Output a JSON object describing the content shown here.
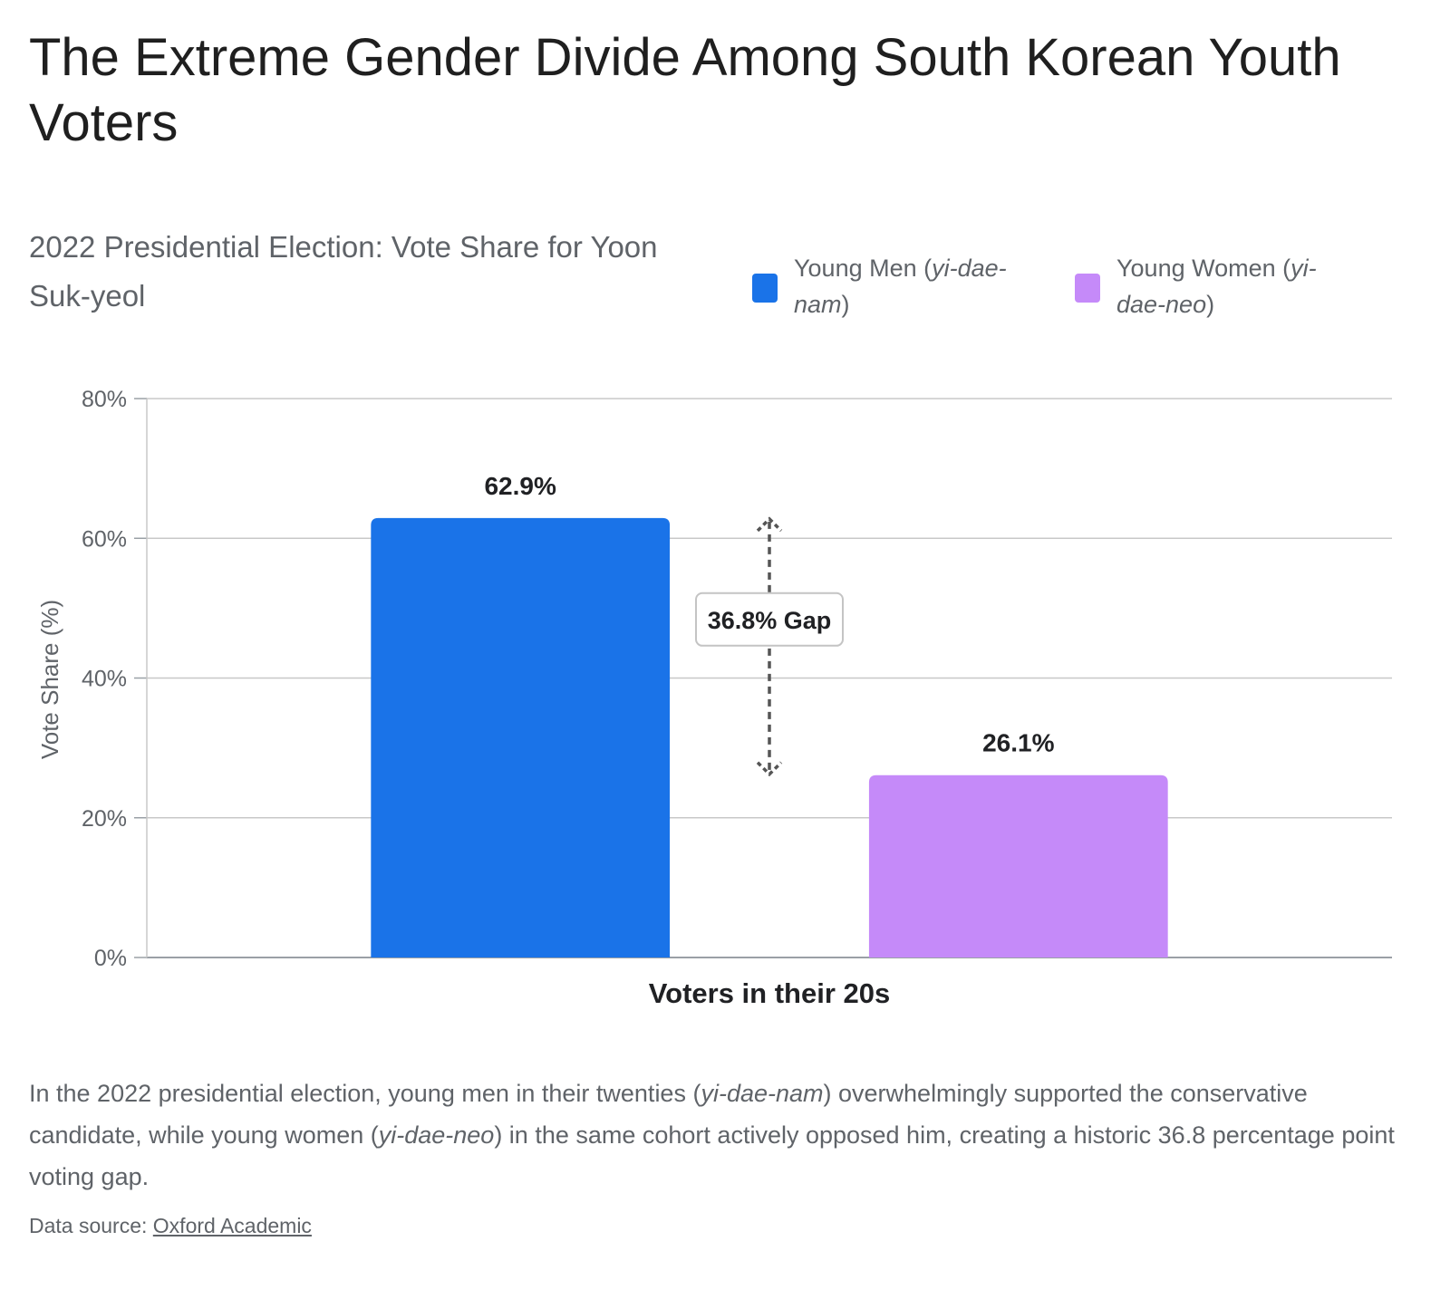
{
  "title": "The Extreme Gender Divide Among South Korean Youth Voters",
  "chart_data": {
    "type": "bar",
    "title": "2022 Presidential Election: Vote Share for Yoon Suk-yeol",
    "xlabel": "Voters in their 20s",
    "ylabel": "Vote Share (%)",
    "ylim": [
      0,
      80
    ],
    "yticks": [
      0,
      20,
      40,
      60,
      80
    ],
    "ytick_labels": [
      "0%",
      "20%",
      "40%",
      "60%",
      "80%"
    ],
    "grid": true,
    "legend_position": "top-right",
    "categories": [
      "Voters in their 20s"
    ],
    "series": [
      {
        "name": "Young Men (yi-dae-nam)",
        "name_prefix": "Young Men (",
        "name_term": "yi-dae-nam",
        "name_suffix": ")",
        "values": [
          62.9
        ],
        "label": "62.9%",
        "color": "#1a73e8"
      },
      {
        "name": "Young Women (yi-dae-neo)",
        "name_prefix": "Young Women (",
        "name_term": "yi-dae-neo",
        "name_suffix": ")",
        "values": [
          26.1
        ],
        "label": "26.1%",
        "color": "#c58af9"
      }
    ],
    "annotations": [
      {
        "text": "36.8% Gap",
        "from": 62.9,
        "to": 26.1
      }
    ]
  },
  "caption": {
    "part1": "In the 2022 presidential election, young men in their twenties (",
    "term1": "yi-dae-nam",
    "part2": ") overwhelmingly supported the conservative candidate, while young women (",
    "term2": "yi-dae-neo",
    "part3": ") in the same cohort actively opposed him, creating a historic 36.8 percentage point voting gap."
  },
  "source": {
    "label": "Data source:",
    "link_text": "Oxford Academic"
  }
}
